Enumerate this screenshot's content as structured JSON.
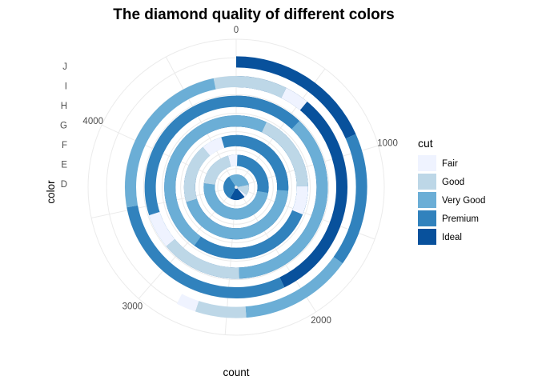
{
  "chart_data": {
    "type": "bar",
    "coord": "polar",
    "title": "The diamond quality of different colors",
    "xlabel": "count",
    "ylabel": "color",
    "categories": [
      "D",
      "E",
      "F",
      "G",
      "H",
      "I",
      "J"
    ],
    "radial_ticks": [
      0,
      1000,
      2000,
      3000,
      4000
    ],
    "ylim": [
      0,
      4884
    ],
    "grid": true,
    "legend": {
      "title": "cut",
      "position": "right"
    },
    "series": [
      {
        "name": "Fair",
        "color": "#eff3ff",
        "values": [
          163,
          224,
          312,
          314,
          303,
          175,
          119
        ]
      },
      {
        "name": "Good",
        "color": "#bdd7e7",
        "values": [
          662,
          933,
          909,
          871,
          702,
          522,
          307
        ]
      },
      {
        "name": "Very Good",
        "color": "#6baed6",
        "values": [
          1513,
          2400,
          2164,
          2299,
          1824,
          1204,
          678
        ]
      },
      {
        "name": "Premium",
        "color": "#3182bd",
        "values": [
          1603,
          2337,
          2331,
          2924,
          2360,
          1428,
          808
        ]
      },
      {
        "name": "Ideal",
        "color": "#08519c",
        "values": [
          2834,
          3903,
          3826,
          4884,
          3115,
          2093,
          896
        ]
      }
    ]
  }
}
